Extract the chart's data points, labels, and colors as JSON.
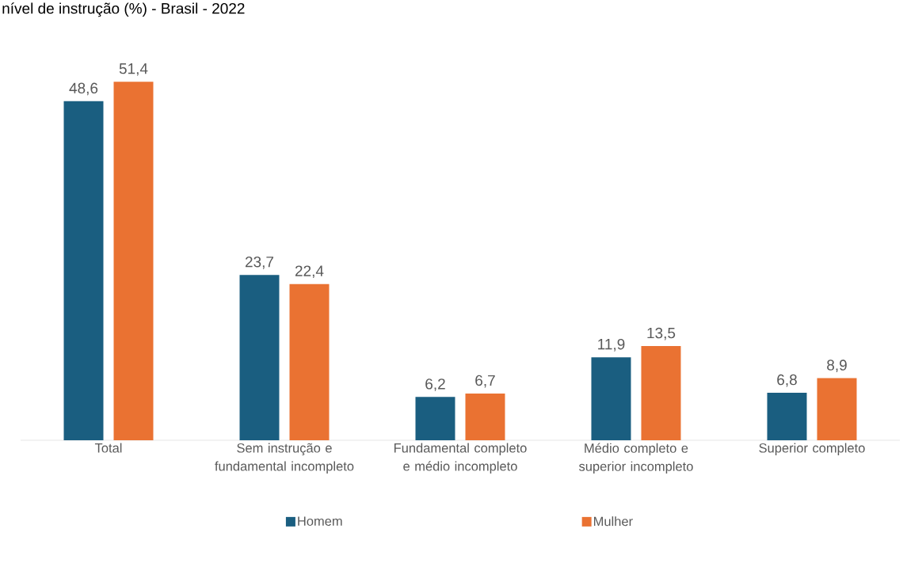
{
  "chart_data": {
    "type": "bar",
    "title": "nível de instrução (%) - Brasil - 2022",
    "categories": [
      "Total",
      "Sem instrução e fundamental incompleto",
      "Fundamental completo e médio incompleto",
      "Médio completo e superior incompleto",
      "Superior completo"
    ],
    "series": [
      {
        "name": "Homem",
        "color": "#1a5e80",
        "values": [
          48.6,
          23.7,
          6.2,
          11.9,
          6.8
        ],
        "value_labels": [
          "48,6",
          "23,7",
          "6,2",
          "11,9",
          "6,8"
        ]
      },
      {
        "name": "Mulher",
        "color": "#ea7232",
        "values": [
          51.4,
          22.4,
          6.7,
          13.5,
          8.9
        ],
        "value_labels": [
          "51,4",
          "22,4",
          "6,7",
          "13,5",
          "8,9"
        ]
      }
    ],
    "relative": false,
    "legend": "bottom"
  }
}
